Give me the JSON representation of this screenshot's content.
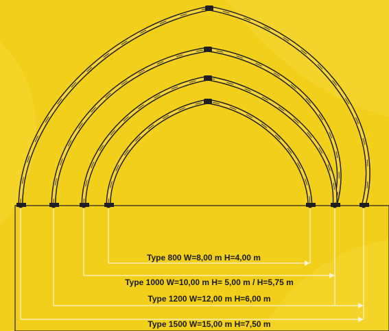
{
  "colors": {
    "background": "#f2cf1a",
    "background_light": "#f7dc3c",
    "frame": "#1f1f1f",
    "frame_fill": "#f5d53a",
    "dimension_line": "#f8f3d2",
    "text": "#1a1a1a"
  },
  "arches": [
    {
      "type": "Type 800",
      "label": "Type 800 W=8,00 m H=4,00 m"
    },
    {
      "type": "Type 1000",
      "label": "Type 1000 W=10,00 m H= 5,00 m / H=5,75 m"
    },
    {
      "type": "Type 1200",
      "label": "Type 1200 W=12,00 m H=6,00 m"
    },
    {
      "type": "Type 1500",
      "label": "Type 1500 W=15,00 m H=7,50 m"
    }
  ]
}
